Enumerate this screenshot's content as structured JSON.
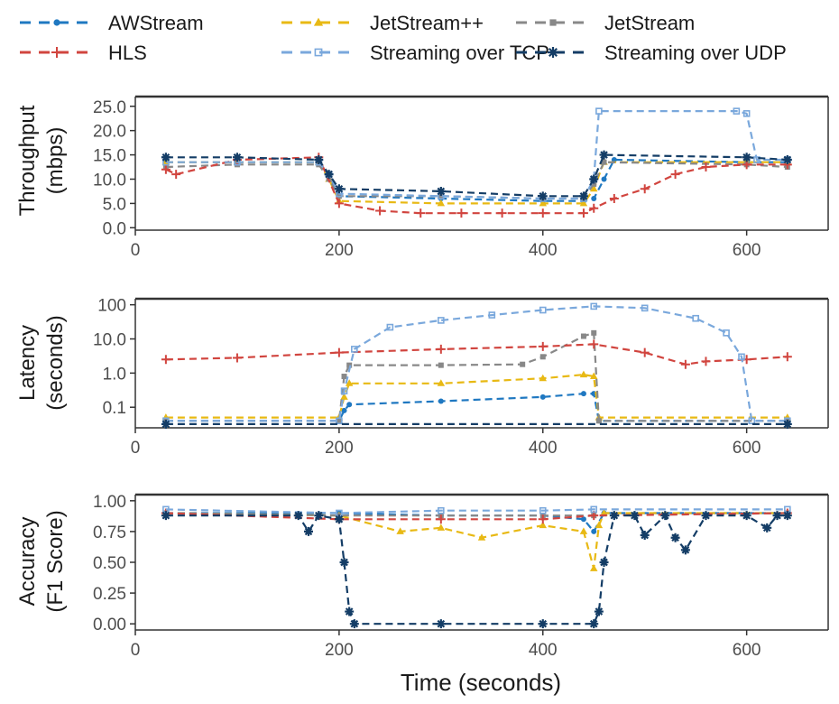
{
  "chart_data": {
    "type": "line",
    "xlabel": "Time (seconds)",
    "legend_position": "top",
    "series_styles": [
      {
        "name": "AWStream",
        "color": "#1f78c1",
        "marker": "dot"
      },
      {
        "name": "JetStream++",
        "color": "#e8b914",
        "marker": "triangle"
      },
      {
        "name": "JetStream",
        "color": "#888888",
        "marker": "square"
      },
      {
        "name": "HLS",
        "color": "#d1453f",
        "marker": "plus"
      },
      {
        "name": "Streaming over TCP",
        "color": "#7aa8dc",
        "marker": "open-square"
      },
      {
        "name": "Streaming over UDP",
        "color": "#143d66",
        "marker": "star"
      }
    ],
    "panels": [
      {
        "id": "throughput",
        "ylabel_lines": [
          "Throughput",
          "(mbps)"
        ],
        "scale": "linear",
        "xlim": [
          0,
          680
        ],
        "ylim": [
          -0.5,
          27
        ],
        "xticks": [
          "0",
          "200",
          "400",
          "600"
        ],
        "yticks": [
          "0.0",
          "5.0",
          "10.0",
          "15.0",
          "20.0",
          "25.0"
        ],
        "series": [
          {
            "name": "AWStream",
            "x": [
              30,
              100,
              180,
              190,
              200,
              300,
              400,
              440,
              450,
              460,
              470,
              600,
              640
            ],
            "y": [
              13.5,
              13.5,
              13.5,
              11,
              6.5,
              6.0,
              5.5,
              5.5,
              6,
              10,
              14,
              13.5,
              13.5
            ]
          },
          {
            "name": "JetStream++",
            "x": [
              30,
              100,
              180,
              190,
              200,
              300,
              400,
              440,
              450,
              460,
              600,
              640
            ],
            "y": [
              13.5,
              13.5,
              13.5,
              10,
              5.5,
              5.0,
              5.0,
              5.0,
              8,
              13.5,
              13.5,
              13.5
            ]
          },
          {
            "name": "JetStream",
            "x": [
              30,
              100,
              180,
              190,
              200,
              300,
              400,
              440,
              450,
              460,
              600,
              640
            ],
            "y": [
              12.5,
              13,
              13,
              10,
              6.5,
              6.5,
              6.0,
              6.0,
              9,
              13.5,
              13.0,
              12.5
            ]
          },
          {
            "name": "HLS",
            "x": [
              30,
              40,
              100,
              180,
              200,
              240,
              280,
              320,
              360,
              400,
              440,
              450,
              470,
              500,
              530,
              560,
              600,
              640
            ],
            "y": [
              12,
              11,
              14,
              14.5,
              5,
              3.5,
              3,
              3,
              3,
              3,
              3,
              4,
              6,
              8,
              11,
              12.5,
              13,
              13
            ]
          },
          {
            "name": "Streaming over TCP",
            "x": [
              30,
              100,
              180,
              190,
              200,
              300,
              400,
              440,
              450,
              455,
              590,
              600,
              610,
              640
            ],
            "y": [
              13.5,
              13.5,
              13.5,
              11,
              7,
              6.5,
              6.0,
              6.0,
              10,
              24,
              24,
              23.5,
              14,
              14
            ]
          },
          {
            "name": "Streaming over UDP",
            "x": [
              30,
              100,
              180,
              190,
              200,
              300,
              400,
              440,
              450,
              460,
              600,
              640
            ],
            "y": [
              14.5,
              14.5,
              14,
              11,
              8,
              7.5,
              6.5,
              6.5,
              10,
              15,
              14.5,
              14
            ]
          }
        ]
      },
      {
        "id": "latency",
        "ylabel_lines": [
          "Latency",
          "(seconds)"
        ],
        "scale": "log",
        "xlim": [
          0,
          680
        ],
        "ylim": [
          0.025,
          150
        ],
        "xticks": [
          "0",
          "200",
          "400",
          "600"
        ],
        "ytick_values": [
          0.1,
          1,
          10,
          100
        ],
        "yticks": [
          "0.1",
          "1.0",
          "10.0",
          "100"
        ],
        "series": [
          {
            "name": "AWStream",
            "x": [
              30,
              200,
              205,
              210,
              300,
              400,
              440,
              450,
              455,
              640
            ],
            "y": [
              0.04,
              0.04,
              0.08,
              0.12,
              0.15,
              0.2,
              0.25,
              0.25,
              0.04,
              0.04
            ]
          },
          {
            "name": "JetStream++",
            "x": [
              30,
              200,
              205,
              210,
              300,
              400,
              440,
              450,
              455,
              640
            ],
            "y": [
              0.05,
              0.05,
              0.2,
              0.5,
              0.5,
              0.7,
              0.9,
              0.8,
              0.05,
              0.05
            ]
          },
          {
            "name": "JetStream",
            "x": [
              30,
              200,
              205,
              210,
              300,
              380,
              400,
              440,
              450,
              455,
              640
            ],
            "y": [
              0.04,
              0.04,
              0.8,
              1.7,
              1.7,
              1.8,
              3,
              12,
              15,
              0.04,
              0.04
            ]
          },
          {
            "name": "HLS",
            "x": [
              30,
              100,
              200,
              300,
              400,
              450,
              500,
              540,
              560,
              600,
              640
            ],
            "y": [
              2.5,
              2.8,
              4,
              5,
              6,
              7,
              4,
              1.8,
              2.2,
              2.5,
              3
            ]
          },
          {
            "name": "Streaming over TCP",
            "x": [
              30,
              200,
              205,
              215,
              250,
              300,
              350,
              400,
              450,
              500,
              550,
              580,
              595,
              605,
              640
            ],
            "y": [
              0.04,
              0.04,
              0.3,
              5,
              22,
              35,
              50,
              70,
              90,
              80,
              40,
              15,
              3,
              0.04,
              0.04
            ]
          },
          {
            "name": "Streaming over UDP",
            "x": [
              30,
              640
            ],
            "y": [
              0.032,
              0.032
            ]
          }
        ]
      },
      {
        "id": "accuracy",
        "ylabel_lines": [
          "Accuracy",
          "(F1 Score)"
        ],
        "scale": "linear",
        "xlim": [
          0,
          680
        ],
        "ylim": [
          -0.05,
          1.05
        ],
        "xticks": [
          "0",
          "200",
          "400",
          "600"
        ],
        "yticks": [
          "0.00",
          "0.25",
          "0.50",
          "0.75",
          "1.00"
        ],
        "series": [
          {
            "name": "AWStream",
            "x": [
              30,
              200,
              300,
              400,
              440,
              450,
              460,
              640
            ],
            "y": [
              0.9,
              0.9,
              0.88,
              0.88,
              0.85,
              0.75,
              0.9,
              0.9
            ]
          },
          {
            "name": "JetStream++",
            "x": [
              30,
              200,
              260,
              300,
              340,
              400,
              440,
              450,
              455,
              460,
              640
            ],
            "y": [
              0.9,
              0.88,
              0.75,
              0.78,
              0.7,
              0.8,
              0.75,
              0.45,
              0.8,
              0.9,
              0.9
            ]
          },
          {
            "name": "JetStream",
            "x": [
              30,
              200,
              300,
              400,
              450,
              640
            ],
            "y": [
              0.9,
              0.88,
              0.88,
              0.88,
              0.88,
              0.9
            ]
          },
          {
            "name": "HLS",
            "x": [
              30,
              200,
              300,
              400,
              450,
              640
            ],
            "y": [
              0.9,
              0.85,
              0.85,
              0.85,
              0.88,
              0.9
            ]
          },
          {
            "name": "Streaming over TCP",
            "x": [
              30,
              200,
              300,
              400,
              450,
              640
            ],
            "y": [
              0.93,
              0.9,
              0.92,
              0.92,
              0.93,
              0.93
            ]
          },
          {
            "name": "Streaming over UDP",
            "x": [
              30,
              160,
              170,
              180,
              200,
              205,
              210,
              215,
              300,
              400,
              450,
              455,
              460,
              470,
              490,
              500,
              520,
              530,
              540,
              560,
              600,
              620,
              630,
              640
            ],
            "y": [
              0.88,
              0.88,
              0.75,
              0.88,
              0.85,
              0.5,
              0.1,
              0.0,
              0.0,
              0.0,
              0.0,
              0.1,
              0.5,
              0.88,
              0.88,
              0.72,
              0.88,
              0.7,
              0.6,
              0.88,
              0.88,
              0.78,
              0.88,
              0.88
            ]
          }
        ]
      }
    ]
  }
}
